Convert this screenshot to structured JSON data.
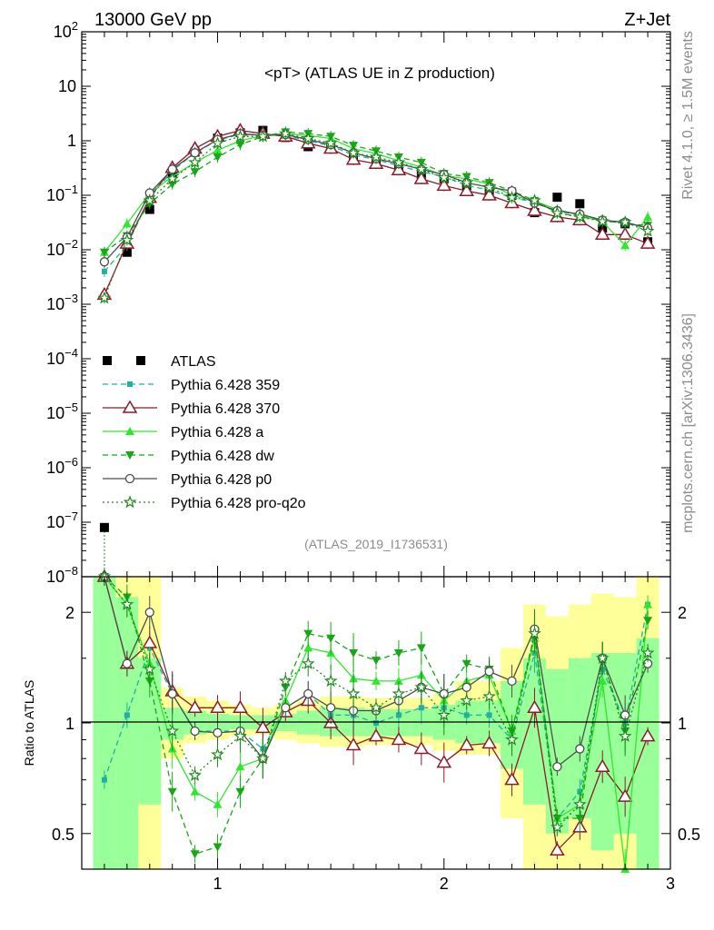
{
  "header": {
    "left": "13000 GeV pp",
    "right": "Z+Jet"
  },
  "side_labels": {
    "rivet": "Rivet 4.1.0, ≥ 1.5M events",
    "mcplots": "mcplots.cern.ch [arXiv:1306.3436]"
  },
  "colors": {
    "ATLAS": "#000000",
    "p359": "#22b0a0",
    "p370": "#8b1a2a",
    "pa": "#2ee82e",
    "pdw": "#16a816",
    "pp0": "#4d4d4d",
    "pq2o": "#1e8a1e",
    "band_yellow": "#ffff99",
    "band_green": "#99ff99"
  },
  "chart_data": [
    {
      "type": "line",
      "title": "<pT> (ATLAS UE in Z production)",
      "analysis_id": "(ATLAS_2019_I1736531)",
      "xlim": [
        0.4,
        3.0
      ],
      "yscale": "log",
      "ylim": [
        1e-08,
        100
      ],
      "y_ticks": [
        {
          "v": 100,
          "m": "10",
          "e": "2"
        },
        {
          "v": 10,
          "m": "10",
          "e": ""
        },
        {
          "v": 1,
          "m": "1",
          "e": ""
        },
        {
          "v": 0.1,
          "m": "10",
          "e": "−1"
        },
        {
          "v": 0.01,
          "m": "10",
          "e": "−2"
        },
        {
          "v": 0.001,
          "m": "10",
          "e": "−3"
        },
        {
          "v": 0.0001,
          "m": "10",
          "e": "−4"
        },
        {
          "v": 1e-05,
          "m": "10",
          "e": "−5"
        },
        {
          "v": 1e-06,
          "m": "10",
          "e": "−6"
        },
        {
          "v": 1e-07,
          "m": "10",
          "e": "−7"
        },
        {
          "v": 1e-08,
          "m": "10",
          "e": "−8"
        }
      ],
      "x": [
        0.5,
        0.6,
        0.7,
        0.8,
        0.9,
        1.0,
        1.1,
        1.2,
        1.3,
        1.4,
        1.5,
        1.6,
        1.7,
        1.8,
        1.9,
        2.0,
        2.1,
        2.2,
        2.3,
        2.4,
        2.5,
        2.6,
        2.7,
        2.8,
        2.9
      ],
      "series": [
        {
          "key": "ATLAS",
          "name": "ATLAS",
          "values": [
            8e-08,
            0.009,
            0.055,
            0.26,
            0.62,
            1.12,
            1.4,
            1.55,
            1.15,
            0.78,
            0.72,
            0.52,
            0.43,
            0.33,
            0.24,
            0.2,
            0.15,
            0.12,
            0.1,
            0.048,
            0.092,
            0.07,
            0.025,
            0.03,
            0.014
          ]
        },
        {
          "key": "p359",
          "name": "Pythia 6.428 359",
          "values": [
            0.004,
            0.012,
            0.09,
            0.28,
            0.6,
            1.02,
            1.32,
            1.3,
            1.25,
            1.0,
            0.8,
            0.55,
            0.45,
            0.35,
            0.27,
            0.22,
            0.15,
            0.125,
            0.09,
            0.075,
            0.05,
            0.045,
            0.035,
            0.03,
            0.026
          ]
        },
        {
          "key": "p370",
          "name": "Pythia 6.428 370",
          "values": [
            0.0015,
            0.013,
            0.09,
            0.32,
            0.72,
            1.2,
            1.55,
            1.35,
            1.2,
            0.9,
            0.72,
            0.45,
            0.38,
            0.29,
            0.2,
            0.15,
            0.12,
            0.1,
            0.072,
            0.052,
            0.04,
            0.035,
            0.019,
            0.019,
            0.013
          ]
        },
        {
          "key": "pa",
          "name": "Pythia 6.428 a",
          "values": [
            0.009,
            0.03,
            0.11,
            0.22,
            0.4,
            0.67,
            1.0,
            1.25,
            1.35,
            1.25,
            1.1,
            0.72,
            0.58,
            0.43,
            0.33,
            0.23,
            0.2,
            0.16,
            0.1,
            0.078,
            0.055,
            0.043,
            0.033,
            0.012,
            0.04
          ]
        },
        {
          "key": "pdw",
          "name": "Pythia 6.428 dw",
          "values": [
            0.009,
            0.018,
            0.07,
            0.16,
            0.27,
            0.5,
            0.85,
            1.2,
            1.45,
            1.35,
            1.2,
            0.82,
            0.65,
            0.5,
            0.4,
            0.25,
            0.22,
            0.17,
            0.12,
            0.08,
            0.048,
            0.04,
            0.035,
            0.03,
            0.028
          ]
        },
        {
          "key": "pp0",
          "name": "Pythia 6.428 p0",
          "values": [
            0.006,
            0.017,
            0.11,
            0.3,
            0.6,
            1.05,
            1.35,
            1.25,
            1.3,
            1.05,
            0.85,
            0.6,
            0.47,
            0.38,
            0.3,
            0.24,
            0.17,
            0.14,
            0.12,
            0.072,
            0.052,
            0.045,
            0.035,
            0.032,
            0.025
          ]
        },
        {
          "key": "pq2o",
          "name": "Pythia 6.428 pro-q2o",
          "values": [
            0.0013,
            0.015,
            0.08,
            0.2,
            0.4,
            0.9,
            1.2,
            1.2,
            1.35,
            1.1,
            0.9,
            0.6,
            0.5,
            0.4,
            0.3,
            0.21,
            0.17,
            0.14,
            0.09,
            0.08,
            0.047,
            0.04,
            0.033,
            0.032,
            0.022
          ]
        }
      ]
    },
    {
      "type": "line",
      "ylabel": "Ratio to ATLAS",
      "xlim": [
        0.4,
        3.0
      ],
      "yscale": "log",
      "ylim": [
        0.4,
        2.5
      ],
      "y_ticks": [
        0.5,
        1,
        2
      ],
      "x_ticks": [
        1,
        2,
        3
      ],
      "x": [
        0.5,
        0.6,
        0.7,
        0.8,
        0.9,
        1.0,
        1.1,
        1.2,
        1.3,
        1.4,
        1.5,
        1.6,
        1.7,
        1.8,
        1.9,
        2.0,
        2.1,
        2.2,
        2.3,
        2.4,
        2.5,
        2.6,
        2.7,
        2.8,
        2.9
      ],
      "series": [
        {
          "key": "p359",
          "name": "Pythia 6.428 359",
          "values": [
            0.7,
            1.05,
            1.6,
            1.2,
            0.95,
            0.95,
            0.95,
            0.85,
            1.1,
            1.2,
            1.05,
            1.05,
            1.0,
            1.05,
            1.1,
            1.1,
            1.05,
            1.05,
            0.9,
            1.55,
            0.55,
            0.65,
            1.4,
            1.0,
            2.1
          ]
        },
        {
          "key": "p370",
          "name": "Pythia 6.428 370",
          "values": [
            2.5,
            1.45,
            1.65,
            1.22,
            1.1,
            1.1,
            1.1,
            0.97,
            1.07,
            1.15,
            1.0,
            0.87,
            0.92,
            0.9,
            0.85,
            0.78,
            0.87,
            0.88,
            0.7,
            1.1,
            0.45,
            0.52,
            0.76,
            0.63,
            0.92
          ]
        },
        {
          "key": "pa",
          "name": "Pythia 6.428 a",
          "values": [
            2.5,
            2.1,
            1.45,
            0.85,
            0.65,
            0.6,
            0.76,
            0.8,
            1.15,
            1.6,
            1.55,
            1.32,
            1.3,
            1.3,
            1.35,
            1.15,
            1.3,
            1.35,
            0.95,
            1.7,
            0.55,
            0.6,
            1.3,
            0.4,
            2.1
          ]
        },
        {
          "key": "pdw",
          "name": "Pythia 6.428 dw",
          "values": [
            2.5,
            2.2,
            1.3,
            0.65,
            0.44,
            0.46,
            0.65,
            0.8,
            1.25,
            1.75,
            1.7,
            1.55,
            1.48,
            1.55,
            1.6,
            1.2,
            1.45,
            1.4,
            0.95,
            1.75,
            0.55,
            0.55,
            1.5,
            0.95,
            1.9
          ]
        },
        {
          "key": "pp0",
          "name": "Pythia 6.428 p0",
          "values": [
            2.5,
            1.45,
            2.0,
            1.2,
            0.95,
            0.94,
            0.95,
            0.8,
            1.1,
            1.2,
            1.1,
            1.08,
            1.08,
            1.15,
            1.25,
            1.2,
            1.25,
            1.38,
            1.3,
            1.8,
            0.76,
            0.85,
            1.5,
            1.05,
            1.45
          ]
        },
        {
          "key": "pq2o",
          "name": "Pythia 6.428 pro-q2o",
          "values": [
            2.5,
            2.1,
            1.4,
            0.95,
            0.72,
            0.82,
            0.92,
            0.8,
            1.3,
            1.45,
            1.3,
            1.2,
            1.1,
            1.2,
            1.25,
            1.05,
            1.15,
            1.18,
            0.9,
            1.75,
            0.52,
            0.6,
            1.5,
            0.92,
            1.55
          ]
        }
      ],
      "band_edges": [
        0.45,
        0.55,
        0.65,
        0.75,
        0.85,
        0.95,
        1.05,
        1.15,
        1.25,
        1.35,
        1.45,
        1.55,
        1.65,
        1.75,
        1.85,
        1.95,
        2.05,
        2.15,
        2.25,
        2.35,
        2.45,
        2.55,
        2.65,
        2.75,
        2.85,
        2.95
      ],
      "band_yellow_lo": [
        0.4,
        0.4,
        0.4,
        0.8,
        0.88,
        0.9,
        0.92,
        0.93,
        0.9,
        0.88,
        0.86,
        0.86,
        0.87,
        0.87,
        0.87,
        0.84,
        0.82,
        0.82,
        0.55,
        0.4,
        0.4,
        0.4,
        0.4,
        0.4,
        0.4
      ],
      "band_yellow_hi": [
        2.5,
        2.5,
        2.5,
        1.25,
        1.18,
        1.15,
        1.12,
        1.1,
        1.12,
        1.15,
        1.18,
        1.18,
        1.17,
        1.17,
        1.17,
        1.2,
        1.3,
        1.3,
        1.6,
        2.1,
        1.95,
        2.1,
        2.25,
        2.2,
        2.5
      ],
      "band_green_lo": [
        0.4,
        0.4,
        0.6,
        0.9,
        0.93,
        0.95,
        0.96,
        0.96,
        0.95,
        0.93,
        0.92,
        0.92,
        0.92,
        0.92,
        0.92,
        0.9,
        0.88,
        0.88,
        0.75,
        0.6,
        0.5,
        0.55,
        0.45,
        0.5,
        0.4
      ],
      "band_green_hi": [
        2.5,
        2.2,
        1.5,
        1.1,
        1.08,
        1.06,
        1.05,
        1.05,
        1.06,
        1.08,
        1.1,
        1.1,
        1.09,
        1.09,
        1.09,
        1.12,
        1.15,
        1.15,
        1.3,
        1.5,
        1.4,
        1.5,
        1.55,
        1.55,
        1.7
      ]
    }
  ]
}
